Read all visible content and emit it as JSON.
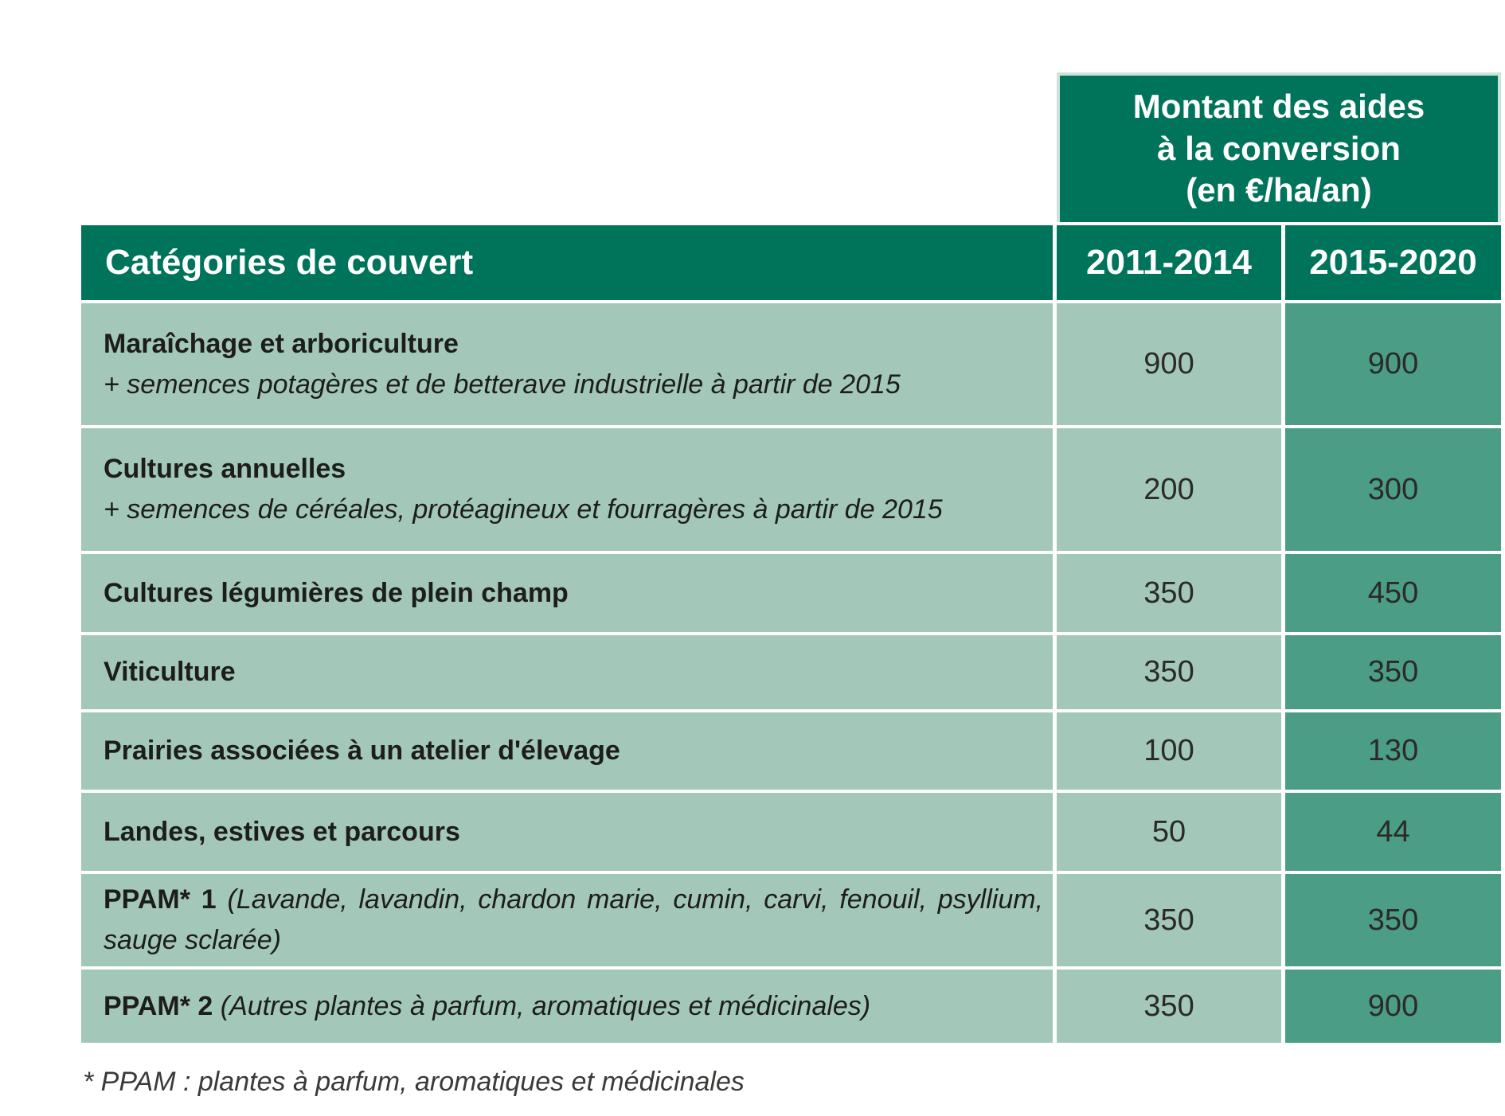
{
  "header": {
    "montant_title": "Montant des aides\nà la conversion\n(en €/ha/an)",
    "category_col": "Catégories de couvert",
    "period_cols": [
      "2011-2014",
      "2015-2020"
    ]
  },
  "table": {
    "rows": [
      {
        "bold": "Maraîchage et arboriculture",
        "italic": "+ semences potagères et de betterave industrielle à partir de 2015",
        "layout": "stacked",
        "v2011": "900",
        "v2015": "900"
      },
      {
        "bold": "Cultures annuelles",
        "italic": "+ semences de céréales, protéagineux et fourragères à partir de 2015",
        "layout": "stacked",
        "v2011": "200",
        "v2015": "300"
      },
      {
        "bold": "Cultures légumières de plein champ",
        "italic": "",
        "layout": "single",
        "v2011": "350",
        "v2015": "450"
      },
      {
        "bold": "Viticulture",
        "italic": "",
        "layout": "single",
        "v2011": "350",
        "v2015": "350"
      },
      {
        "bold": "Prairies associées à un atelier d'élevage",
        "italic": "",
        "layout": "single",
        "v2011": "100",
        "v2015": "130"
      },
      {
        "bold": "Landes, estives et parcours",
        "italic": "",
        "layout": "single",
        "v2011": "50",
        "v2015": "44"
      },
      {
        "bold": "PPAM* 1",
        "italic": "(Lavande, lavandin, chardon marie, cumin, carvi, fenouil, psyllium, sauge sclarée)",
        "layout": "inline",
        "v2011": "350",
        "v2015": "350"
      },
      {
        "bold": "PPAM* 2",
        "italic": "(Autres plantes à parfum, aromatiques et médicinales)",
        "layout": "inline",
        "v2011": "350",
        "v2015": "900"
      }
    ]
  },
  "footnote": "* PPAM : plantes à parfum, aromatiques et médicinales",
  "colors": {
    "dark_green": "#00745A",
    "light_green": "#A3C8B9",
    "medium_green": "#4B9D86",
    "pale_border": "#CDE3DA"
  }
}
